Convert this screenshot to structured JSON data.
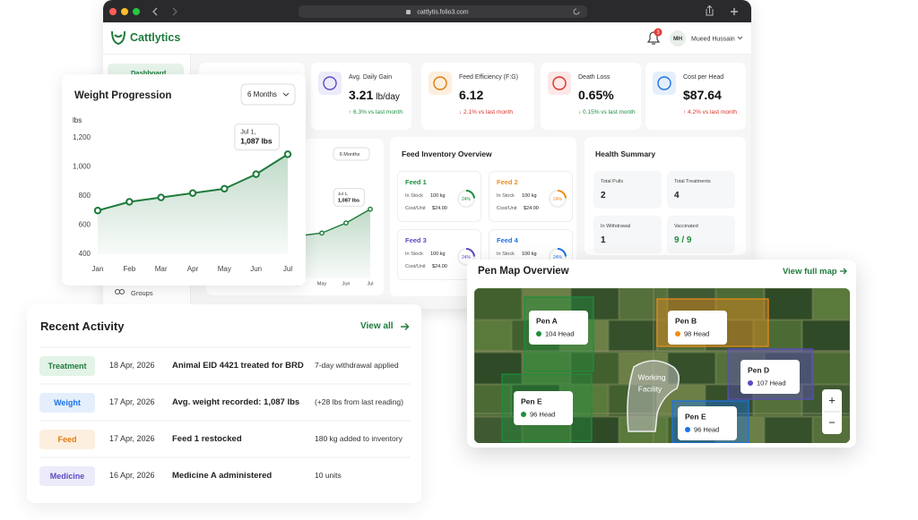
{
  "browser": {
    "url": "cattlytis.folio3.com"
  },
  "header": {
    "brand": "Cattlytics",
    "notifications": "3",
    "initials": "MH",
    "user": "Mueed Hussain"
  },
  "sidebar": [
    "Dashboard",
    "Groups"
  ],
  "kpis": [
    {
      "label": "Avg. Daily Gain",
      "value": "3.21",
      "unit": "lb/day",
      "change": "↑ 6.3% vs last month",
      "color": "#1e8e3e"
    },
    {
      "label": "Feed Efficiency (F:G)",
      "value": "6.12",
      "unit": "",
      "change": "↓ 2.1% vs last month",
      "color": "#d93025"
    },
    {
      "label": "Death Loss",
      "value": "0.65%",
      "unit": "",
      "change": "↓ 0.15% vs last month",
      "color": "#1e8e3e"
    },
    {
      "label": "Cost per Head",
      "value": "$87.64",
      "unit": "",
      "change": "↑ 4.2% vs last month",
      "color": "#d93025"
    }
  ],
  "feed_inventory": {
    "title": "Feed Inventory Overview",
    "stock_label": "In Stock",
    "cost_label": "Cost/Unit",
    "feeds": [
      {
        "name": "Feed 1",
        "stock": "100 kg",
        "cost": "$24.00",
        "pct": 24,
        "pct_label": "24%",
        "color": "#1e8e3e"
      },
      {
        "name": "Feed 2",
        "stock": "100 kg",
        "cost": "$24.00",
        "pct": 24,
        "pct_label": "24%",
        "color": "#f08c1a"
      },
      {
        "name": "Feed 3",
        "stock": "100 kg",
        "cost": "$24.00",
        "pct": 24,
        "pct_label": "24%",
        "color": "#5b4bc4"
      },
      {
        "name": "Feed 4",
        "stock": "100 kg",
        "cost": "$24.00",
        "pct": 24,
        "pct_label": "24%",
        "color": "#1a73e8"
      }
    ]
  },
  "health": {
    "title": "Health Summary",
    "items": [
      {
        "label": "Total Pulls",
        "value": "2",
        "color": "#222"
      },
      {
        "label": "Total Treatments",
        "value": "4",
        "color": "#222"
      },
      {
        "label": "In Withdrawal",
        "value": "1",
        "color": "#222"
      },
      {
        "label": "Vaccinated",
        "value": "9 / 9",
        "color": "#1e8e3e"
      }
    ]
  },
  "chart_data": {
    "type": "line",
    "title": "Weight Progression",
    "range": "6 Months",
    "y_label": "lbs",
    "categories": [
      "Jan",
      "Feb",
      "Mar",
      "Apr",
      "May",
      "Jun",
      "Jul"
    ],
    "values": [
      700,
      760,
      790,
      820,
      850,
      950,
      1087
    ],
    "color": "#1e7b3c",
    "ylim": [
      400,
      1200
    ],
    "yticks": [
      400,
      600,
      800,
      {
        "value": 1000,
        "label": "1,000"
      },
      {
        "value": 1200,
        "label": "1,200"
      }
    ],
    "annotation": [
      "Jul 1,",
      "1,087 lbs"
    ]
  },
  "activity": {
    "title": "Recent Activity",
    "view_all": "View all",
    "rows": [
      {
        "tag": "Treatment",
        "color": "#1e7b3c",
        "bg": "#e3f3e7",
        "date": "18 Apr, 2026",
        "text": "Animal EID 4421 treated for BRD",
        "detail": "7-day withdrawal applied"
      },
      {
        "tag": "Weight",
        "color": "#1a73e8",
        "bg": "#e5effc",
        "date": "17 Apr, 2026",
        "text": "Avg. weight recorded: 1,087 lbs",
        "detail": "(+28 lbs from last reading)"
      },
      {
        "tag": "Feed",
        "color": "#e07b0c",
        "bg": "#fdefdf",
        "date": "17 Apr, 2026",
        "text": "Feed 1 restocked",
        "detail": "180 kg added to inventory"
      },
      {
        "tag": "Medicine",
        "color": "#5b4bc4",
        "bg": "#ecebfa",
        "date": "16 Apr, 2026",
        "text": "Medicine A administered",
        "detail": "10 units"
      }
    ]
  },
  "map": {
    "title": "Pen Map Overview",
    "link": "View full map",
    "facility": [
      "Working",
      "Facility"
    ],
    "zoom_in": "+",
    "zoom_out": "−",
    "pens": [
      {
        "name": "Pen A",
        "head": "104 Head",
        "color": "#1e8e3e"
      },
      {
        "name": "Pen B",
        "head": "98 Head",
        "color": "#f08c1a"
      },
      {
        "name": "Pen D",
        "head": "107 Head",
        "color": "#5b4bc4"
      },
      {
        "name": "Pen E",
        "head": "96 Head",
        "color": "#1e8e3e"
      },
      {
        "name": "Pen E",
        "head": "96 Head",
        "color": "#1a73e8"
      }
    ]
  }
}
